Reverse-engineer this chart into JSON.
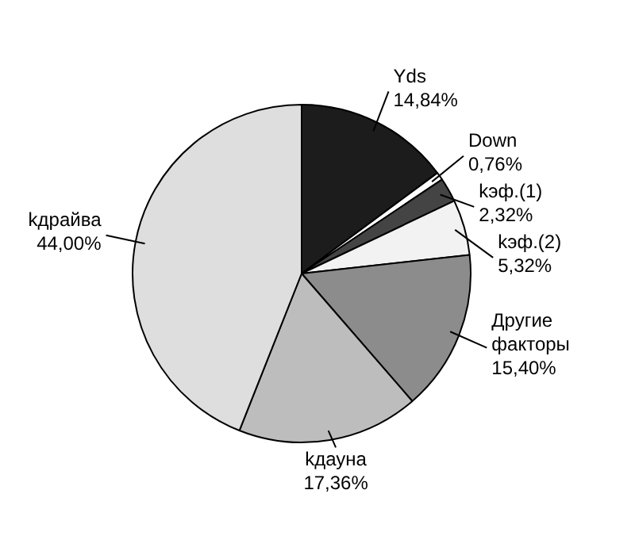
{
  "chart_data": {
    "type": "pie",
    "categories": [
      "Yds",
      "Down",
      "kэф.(1)",
      "kэф.(2)",
      "Другие факторы",
      "kдауна",
      "kдрайва"
    ],
    "values": [
      14.84,
      0.76,
      2.32,
      5.32,
      15.4,
      17.36,
      44.0
    ],
    "value_labels": [
      "14,84%",
      "0,76%",
      "2,32%",
      "5,32%",
      "15,40%",
      "17,36%",
      "44,00%"
    ],
    "colors": [
      "#1c1c1c",
      "#ffffff",
      "#444444",
      "#f2f2f2",
      "#8c8c8c",
      "#bdbdbd",
      "#dedede"
    ],
    "legend": false
  }
}
